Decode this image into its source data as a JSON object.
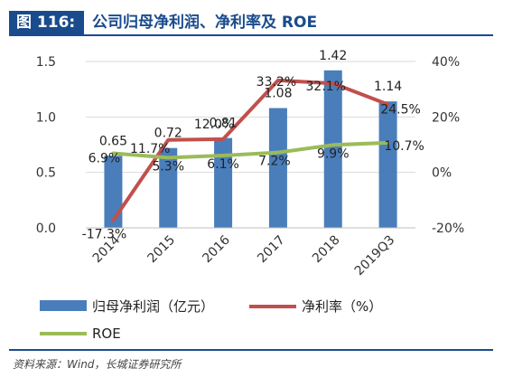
{
  "title": {
    "tag": "图 116:",
    "text": "公司归母净利润、净利率及 ROE"
  },
  "source": "资料来源：Wind，长城证券研究所",
  "chart_data": {
    "type": "bar",
    "categories": [
      "2014",
      "2015",
      "2016",
      "2017",
      "2018",
      "2019Q3"
    ],
    "left_axis": {
      "ylim": [
        0,
        1.5
      ],
      "ticks": [
        "0.0",
        "0.5",
        "1.0",
        "1.5"
      ]
    },
    "right_axis": {
      "ylim": [
        -20,
        40
      ],
      "ticks": [
        "-20%",
        "0%",
        "20%",
        "40%"
      ]
    },
    "series": [
      {
        "name": "归母净利润（亿元）",
        "kind": "bar",
        "axis": "left",
        "color": "#4a7ebb",
        "values": [
          0.65,
          0.72,
          0.81,
          1.08,
          1.42,
          1.14
        ],
        "labels": [
          "0.65",
          "0.72",
          "0.81",
          "1.08",
          "1.42",
          "1.14"
        ]
      },
      {
        "name": "净利率（%）",
        "kind": "line",
        "axis": "right",
        "color": "#c0504d",
        "values": [
          -17.3,
          11.7,
          12.0,
          33.2,
          32.1,
          24.5
        ],
        "labels": [
          "-17.3%",
          "11.7%",
          "12.0%",
          "33.2%",
          "32.1%",
          "24.5%"
        ]
      },
      {
        "name": "ROE",
        "kind": "line",
        "axis": "right",
        "color": "#9bbb59",
        "values": [
          6.9,
          5.3,
          6.1,
          7.2,
          9.9,
          10.7
        ],
        "labels": [
          "6.9%",
          "5.3%",
          "6.1%",
          "7.2%",
          "9.9%",
          "10.7%"
        ]
      }
    ],
    "legend_position": "bottom"
  }
}
